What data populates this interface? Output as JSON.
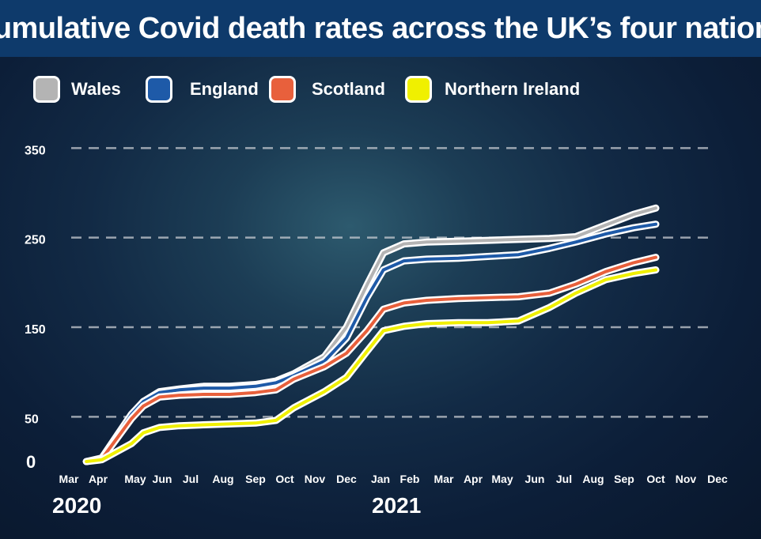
{
  "title": "Cumulative Covid death rates across the UK’s four nations",
  "year_labels": [
    "2020",
    "2021"
  ],
  "chart_data": {
    "type": "line",
    "title": "Cumulative Covid death rates across the UK’s four nations",
    "xlabel": "",
    "ylabel": "",
    "categories": [
      "Mar",
      "Apr",
      "May",
      "Jun",
      "Jul",
      "Aug",
      "Sep",
      "Oct",
      "Nov",
      "Dec",
      "Jan",
      "Feb",
      "Mar",
      "Apr",
      "May",
      "Jun",
      "Jul",
      "Aug",
      "Sep",
      "Oct",
      "Nov",
      "Dec"
    ],
    "yticks": [
      0,
      50,
      150,
      250,
      350
    ],
    "ylim": [
      0,
      360
    ],
    "grid": true,
    "legend_position": "top",
    "series": [
      {
        "name": "Wales",
        "color": "#b4b4b4",
        "points": [
          [
            0.6,
            0
          ],
          [
            1.1,
            3
          ],
          [
            1.9,
            52
          ],
          [
            2.3,
            67
          ],
          [
            2.9,
            78
          ],
          [
            3.6,
            81
          ],
          [
            4.4,
            84
          ],
          [
            5.2,
            84
          ],
          [
            6.0,
            86
          ],
          [
            6.7,
            90
          ],
          [
            7.3,
            98
          ],
          [
            8.3,
            117
          ],
          [
            9.0,
            150
          ],
          [
            9.6,
            197
          ],
          [
            10.1,
            233
          ],
          [
            10.8,
            243
          ],
          [
            11.5,
            245
          ],
          [
            12.5,
            246
          ],
          [
            13.5,
            247
          ],
          [
            14.5,
            248
          ],
          [
            15.5,
            249
          ],
          [
            16.4,
            251
          ],
          [
            17.4,
            264
          ],
          [
            18.3,
            276
          ],
          [
            19.0,
            283
          ]
        ]
      },
      {
        "name": "England",
        "color": "#1e5aa8",
        "points": [
          [
            0.6,
            0
          ],
          [
            1.1,
            4
          ],
          [
            1.9,
            53
          ],
          [
            2.3,
            67
          ],
          [
            2.9,
            77
          ],
          [
            3.6,
            80
          ],
          [
            4.4,
            82
          ],
          [
            5.2,
            82
          ],
          [
            6.0,
            84
          ],
          [
            6.7,
            88
          ],
          [
            7.3,
            96
          ],
          [
            8.3,
            112
          ],
          [
            9.0,
            138
          ],
          [
            9.6,
            183
          ],
          [
            10.1,
            214
          ],
          [
            10.8,
            224
          ],
          [
            11.5,
            226
          ],
          [
            12.5,
            227
          ],
          [
            13.5,
            229
          ],
          [
            14.5,
            231
          ],
          [
            15.5,
            238
          ],
          [
            16.4,
            245
          ],
          [
            17.4,
            254
          ],
          [
            18.3,
            261
          ],
          [
            19.0,
            265
          ]
        ]
      },
      {
        "name": "Scotland",
        "color": "#e8603c",
        "points": [
          [
            0.6,
            0
          ],
          [
            1.1,
            3
          ],
          [
            1.9,
            48
          ],
          [
            2.3,
            62
          ],
          [
            2.9,
            72
          ],
          [
            3.6,
            74
          ],
          [
            4.4,
            75
          ],
          [
            5.2,
            75
          ],
          [
            6.0,
            77
          ],
          [
            6.7,
            80
          ],
          [
            7.3,
            92
          ],
          [
            8.3,
            106
          ],
          [
            9.0,
            121
          ],
          [
            9.6,
            146
          ],
          [
            10.1,
            170
          ],
          [
            10.8,
            177
          ],
          [
            11.5,
            180
          ],
          [
            12.5,
            182
          ],
          [
            13.5,
            183
          ],
          [
            14.5,
            184
          ],
          [
            15.5,
            188
          ],
          [
            16.4,
            198
          ],
          [
            17.4,
            212
          ],
          [
            18.3,
            222
          ],
          [
            19.0,
            228
          ]
        ]
      },
      {
        "name": "Northern Ireland",
        "color": "#f0f000",
        "points": [
          [
            0.6,
            0
          ],
          [
            1.1,
            2
          ],
          [
            1.9,
            20
          ],
          [
            2.3,
            32
          ],
          [
            2.9,
            38
          ],
          [
            3.6,
            40
          ],
          [
            4.4,
            41
          ],
          [
            5.2,
            42
          ],
          [
            6.0,
            43
          ],
          [
            6.7,
            46
          ],
          [
            7.3,
            60
          ],
          [
            8.3,
            78
          ],
          [
            9.0,
            94
          ],
          [
            9.6,
            123
          ],
          [
            10.1,
            146
          ],
          [
            10.8,
            151
          ],
          [
            11.5,
            154
          ],
          [
            12.5,
            155
          ],
          [
            13.5,
            155
          ],
          [
            14.5,
            157
          ],
          [
            15.5,
            172
          ],
          [
            16.4,
            188
          ],
          [
            17.4,
            203
          ],
          [
            18.3,
            210
          ],
          [
            19.0,
            214
          ]
        ]
      }
    ]
  }
}
